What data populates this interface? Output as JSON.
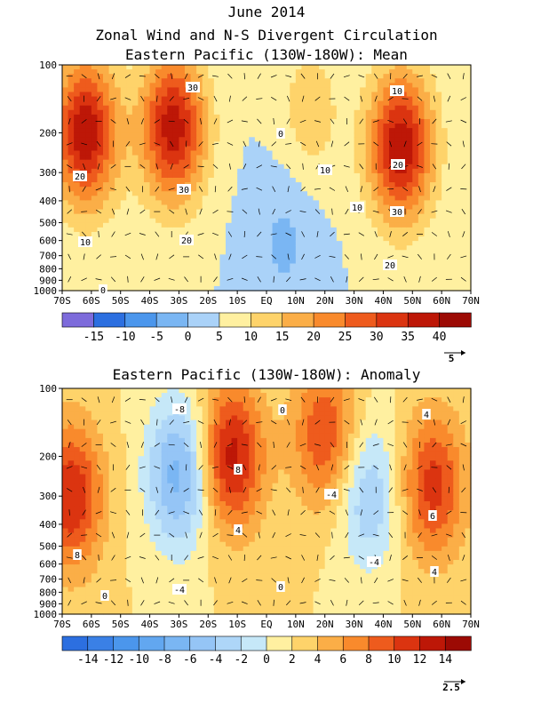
{
  "header": {
    "line1": "June 2014",
    "line2": "Zonal Wind and N-S Divergent Circulation",
    "line3": "Eastern Pacific (130W-180W): Mean"
  },
  "chart_data": [
    {
      "type": "heatmap",
      "title": "Eastern Pacific (130W-180W): Mean",
      "x_ticks": [
        "70S",
        "60S",
        "50S",
        "40S",
        "30S",
        "20S",
        "10S",
        "EQ",
        "10N",
        "20N",
        "30N",
        "40N",
        "50N",
        "60N",
        "70N"
      ],
      "y_ticks": [
        "100",
        "200",
        "300",
        "400",
        "500",
        "600",
        "700",
        "800",
        "900",
        "1000"
      ],
      "xlim": [
        -70,
        70
      ],
      "ylim": [
        1000,
        100
      ],
      "yscale": "log",
      "colorbar": {
        "labels": [
          "-15",
          "-10",
          "-5",
          "0",
          "5",
          "10",
          "15",
          "20",
          "25",
          "30",
          "35",
          "40"
        ],
        "colors": [
          "#7d6bdb",
          "#2c6fe0",
          "#4b96ec",
          "#7ab6f3",
          "#aad2f8",
          "#fff0a0",
          "#fed36a",
          "#fbae47",
          "#f98a2c",
          "#ee5b1d",
          "#db3410",
          "#bd1707",
          "#9c0a04"
        ]
      },
      "contour_labels": [
        "30",
        "30",
        "20",
        "20",
        "10",
        "10",
        "20",
        "30",
        "20",
        "10",
        "10",
        "0",
        "0"
      ],
      "reference_vector": "5",
      "centers": [
        {
          "lat": -62,
          "p": 200,
          "value": 34
        },
        {
          "lat": -32,
          "p": 190,
          "value": 33
        },
        {
          "lat": 46,
          "p": 230,
          "value": 34
        },
        {
          "lat": 15,
          "p": 160,
          "value": 8
        },
        {
          "lat": 6,
          "p": 600,
          "value": -6
        }
      ]
    },
    {
      "type": "heatmap",
      "title": "Eastern Pacific (130W-180W): Anomaly",
      "x_ticks": [
        "70S",
        "60S",
        "50S",
        "40S",
        "30S",
        "20S",
        "10S",
        "EQ",
        "10N",
        "20N",
        "30N",
        "40N",
        "50N",
        "60N",
        "70N"
      ],
      "y_ticks": [
        "100",
        "200",
        "300",
        "400",
        "500",
        "600",
        "700",
        "800",
        "900",
        "1000"
      ],
      "xlim": [
        -70,
        70
      ],
      "ylim": [
        1000,
        100
      ],
      "yscale": "log",
      "colorbar": {
        "labels": [
          "-14",
          "-12",
          "-10",
          "-8",
          "-6",
          "-4",
          "-2",
          "0",
          "2",
          "4",
          "6",
          "8",
          "10",
          "12",
          "14"
        ],
        "colors": [
          "#2c6fe0",
          "#3a80e6",
          "#4b96ec",
          "#62a7f0",
          "#7ab6f3",
          "#95c5f6",
          "#aed6f8",
          "#c6e8f8",
          "#fff0a0",
          "#fed36a",
          "#fbae47",
          "#f98a2c",
          "#ee5b1d",
          "#db3410",
          "#bd1707",
          "#9c0a04"
        ]
      },
      "contour_labels": [
        "-8",
        "8",
        "-4",
        "8",
        "4",
        "-4",
        "0",
        "0",
        "4",
        "6",
        "4",
        "-4",
        "0"
      ],
      "reference_vector": "2.5",
      "centers": [
        {
          "lat": -67,
          "p": 300,
          "value": 10
        },
        {
          "lat": -30,
          "p": 240,
          "value": -9
        },
        {
          "lat": -12,
          "p": 200,
          "value": 11
        },
        {
          "lat": 20,
          "p": 160,
          "value": 8
        },
        {
          "lat": 35,
          "p": 300,
          "value": -6
        },
        {
          "lat": 57,
          "p": 270,
          "value": 9
        }
      ]
    }
  ]
}
